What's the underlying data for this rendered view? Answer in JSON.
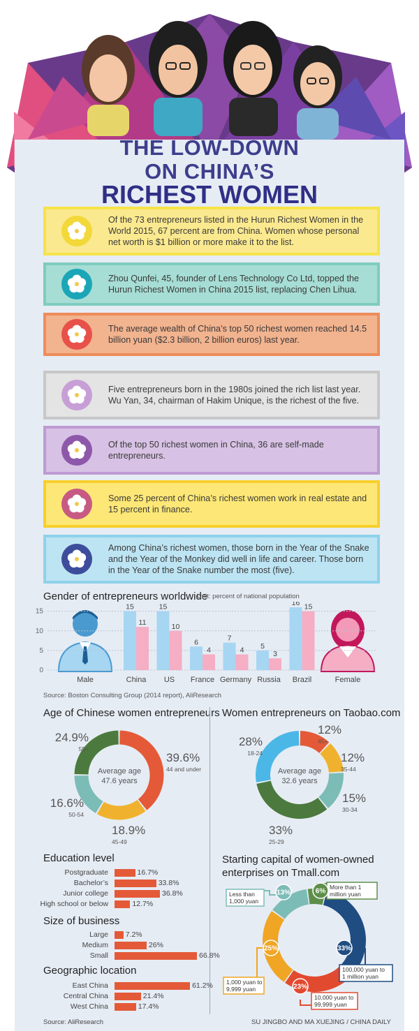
{
  "header": {
    "title_line1": "THE LOW-DOWN",
    "title_line2": "ON CHINA’S",
    "title_line3": "RICHEST WOMEN"
  },
  "facts": [
    {
      "text": "Of the 73 entrepreneurs listed in the Hurun Richest Women in the World 2015, 67 percent are from China. Women whose personal net worth is $1 billion or more make it to the list.",
      "bg": "#fbe98f",
      "border": "#f5e34a",
      "badge": "#f2d83a"
    },
    {
      "text": "Zhou Qunfei, 45, founder of Lens Technology Co Ltd, topped the Hurun Richest Women in China 2015 list, replacing Chen Lihua.",
      "bg": "#a6ddd4",
      "border": "#7fccbf",
      "badge": "#1aa6b7"
    },
    {
      "text": "The average wealth of China’s top 50 richest women reached 14.5 billion yuan ($2.3 billion, 2 billion euros) last year.",
      "bg": "#f2b38f",
      "border": "#ee8c5a",
      "badge": "#e8514a"
    },
    {
      "text": "Five entrepreneurs born in the 1980s joined the rich list last year. Wu Yan, 34, chairman of Hakim Unique, is the richest of the five.",
      "bg": "#e4e4e4",
      "border": "#c7c7c7",
      "badge": "#c79fd6"
    },
    {
      "text": "Of the top 50 richest women in China, 36 are self-made entrepreneurs.",
      "bg": "#d7c1e4",
      "border": "#be9bd4",
      "badge": "#8d58aa"
    },
    {
      "text": "Some 25 percent of China’s richest women work in real estate and 15 percent in finance.",
      "bg": "#fde776",
      "border": "#f8cf2b",
      "badge": "#c75a82"
    },
    {
      "text": "Among China’s richest women, those born in the Year of the Snake and the Year of the Monkey did well in life and career. Those born in the Year of the Snake number the most (five).",
      "bg": "#bde4f3",
      "border": "#8fd1ea",
      "badge": "#3e4c9c"
    }
  ],
  "gender_chart": {
    "title": "Gender of entrepreneurs worldwide",
    "unit": "Unit: percent of national population",
    "source": "Source: Boston Consulting Group (2014 report), AliResearch",
    "male_label": "Male",
    "female_label": "Female"
  },
  "education": {
    "title": "Education level"
  },
  "size": {
    "title": "Size of business"
  },
  "geo": {
    "title": "Geographic location"
  },
  "age": {
    "title": "Age of Chinese women entrepreneurs",
    "center_line1": "Average age",
    "center_line2": "47.6 years"
  },
  "taobao": {
    "title": "Women entrepreneurs on Taobao.com",
    "center_line1": "Average age",
    "center_line2": "32.6 years"
  },
  "tmall": {
    "title_line1": "Starting capital of women-owned",
    "title_line2": "enterprises on Tmall.com"
  },
  "footer": {
    "source": "Source: AliResearch",
    "credit": "SU JINGBO AND MA XUEJING / CHINA DAILY"
  },
  "colors": {
    "male_blue": "#a7d6f2",
    "female_pink": "#f5aec4",
    "bar_orange": "#e45a38",
    "title_purple": "#3d3e8c"
  },
  "chart_data": [
    {
      "type": "bar",
      "title": "Gender of entrepreneurs worldwide",
      "ylabel": "Unit: percent of national population",
      "categories": [
        "China",
        "US",
        "France",
        "Germany",
        "Russia",
        "Brazil"
      ],
      "series": [
        {
          "name": "Male",
          "values": [
            15,
            15,
            6,
            7,
            5,
            16
          ],
          "color": "#a7d6f2"
        },
        {
          "name": "Female",
          "values": [
            11,
            10,
            4,
            4,
            3,
            15
          ],
          "color": "#f5aec4"
        }
      ],
      "yticks": [
        0,
        5,
        10,
        15
      ],
      "ylim": [
        0,
        16
      ],
      "grid": true
    },
    {
      "type": "pie",
      "title": "Age of Chinese women entrepreneurs",
      "slices": [
        {
          "label": "44 and under",
          "value": 39.6,
          "text": "39.6%",
          "color": "#e45a38"
        },
        {
          "label": "45-49",
          "value": 18.9,
          "text": "18.9%",
          "color": "#f0b22e"
        },
        {
          "label": "50-54",
          "value": 16.6,
          "text": "16.6%",
          "color": "#7cbcb7"
        },
        {
          "label": "55+",
          "value": 24.9,
          "text": "24.9%",
          "color": "#4c7a3e"
        }
      ]
    },
    {
      "type": "pie",
      "title": "Women entrepreneurs on Taobao.com",
      "slices": [
        {
          "label": "45+",
          "value": 12,
          "text": "12%",
          "color": "#e45a38"
        },
        {
          "label": "35-44",
          "value": 12,
          "text": "12%",
          "color": "#f0b22e"
        },
        {
          "label": "30-34",
          "value": 15,
          "text": "15%",
          "color": "#7cbcb7"
        },
        {
          "label": "25-29",
          "value": 33,
          "text": "33%",
          "color": "#4c7a3e"
        },
        {
          "label": "18-24",
          "value": 28,
          "text": "28%",
          "color": "#4bb7e6"
        }
      ]
    },
    {
      "type": "bar",
      "title": "Education level",
      "categories": [
        "Postgraduate",
        "Bachelor’s",
        "Junior college",
        "High school or below"
      ],
      "values": [
        16.7,
        33.8,
        36.8,
        12.7
      ],
      "labels": [
        "16.7%",
        "33.8%",
        "36.8%",
        "12.7%"
      ],
      "orientation": "horizontal"
    },
    {
      "type": "bar",
      "title": "Size of business",
      "categories": [
        "Large",
        "Medium",
        "Small"
      ],
      "values": [
        7.2,
        26,
        66.8
      ],
      "labels": [
        "7.2%",
        "26%",
        "66.8%"
      ],
      "orientation": "horizontal"
    },
    {
      "type": "bar",
      "title": "Geographic location",
      "categories": [
        "East China",
        "Central China",
        "West China"
      ],
      "values": [
        61.2,
        21.4,
        17.4
      ],
      "labels": [
        "61.2%",
        "21.4%",
        "17.4%"
      ],
      "orientation": "horizontal"
    },
    {
      "type": "pie",
      "title": "Starting capital of women-owned enterprises on Tmall.com",
      "slices": [
        {
          "label": "More than 1 million yuan",
          "value": 6,
          "text": "6%",
          "color": "#5e8f4a"
        },
        {
          "label": "100,000 yuan to 1 million yuan",
          "value": 33,
          "text": "33%",
          "color": "#1f4d82"
        },
        {
          "label": "10,000 yuan to 99,999 yuan",
          "value": 23,
          "text": "23%",
          "color": "#e24a30"
        },
        {
          "label": "1,000 yuan to 9,999 yuan",
          "value": 25,
          "text": "25%",
          "color": "#f0a524"
        },
        {
          "label": "Less than 1,000 yuan",
          "value": 13,
          "text": "13%",
          "color": "#7cbcb7"
        }
      ]
    }
  ]
}
